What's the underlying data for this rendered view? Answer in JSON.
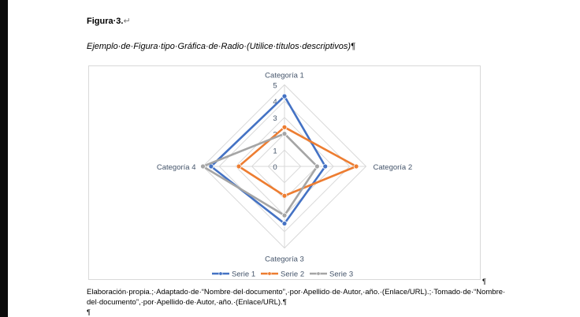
{
  "document": {
    "figure_label": "Figura·3.",
    "figure_label_mark": "↵",
    "figure_title": "Ejemplo·de·Figura·tipo·Gráfica·de·Radio·(Utilice·títulos·descriptivos)",
    "pilcrow": "¶",
    "caption_line1": "Elaboración·propia.;·Adaptado·de·“Nombre·del·documento”,·por·Apellido·de·Autor,·año.·(Enlace/URL).;·Tomado·de·“Nombre·",
    "caption_line2": "del·documento”,·por·Apellido·de·Autor,·año.·(Enlace/URL).¶",
    "empty_paragraph": "¶"
  },
  "chart_data": {
    "type": "radar",
    "categories": [
      "Categoría 1",
      "Categoría 2",
      "Categoría 3",
      "Categoría 4"
    ],
    "rlim": [
      0,
      5
    ],
    "ticks": [
      "0",
      "1",
      "2",
      "3",
      "4",
      "5"
    ],
    "grid": true,
    "legend": "bottom",
    "series": [
      {
        "name": "Serie 1",
        "color": "#4472c4",
        "values": [
          4.3,
          2.5,
          3.5,
          4.5
        ]
      },
      {
        "name": "Serie 2",
        "color": "#ed7d31",
        "values": [
          2.4,
          4.4,
          1.8,
          2.8
        ]
      },
      {
        "name": "Serie 3",
        "color": "#a5a5a5",
        "values": [
          2,
          2,
          3,
          5
        ]
      }
    ]
  }
}
